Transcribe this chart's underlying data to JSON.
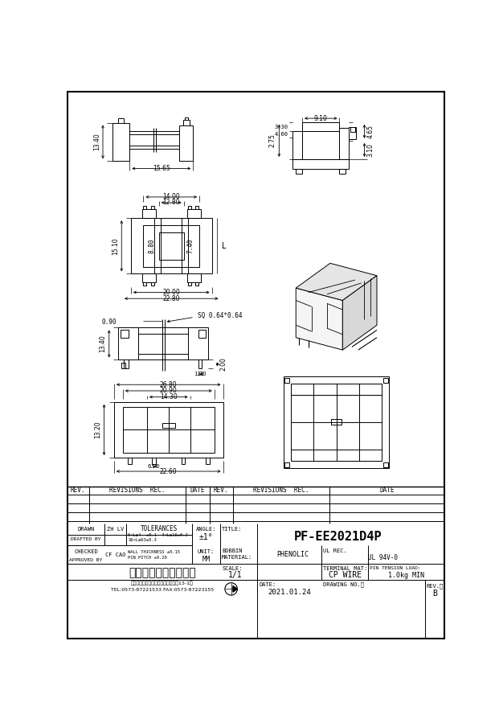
{
  "title": "PF-EE2021D4P",
  "company_name": "海宁捧晖电子有限公司",
  "company_addr": "地址：浙江省海宁市益宫镇园区四路13-1号",
  "company_tel": "TEL:0573-87221533 FAX:0573-87223155",
  "zh_lv": "ZH LV",
  "cf_cao": "CF CAO",
  "tol_line1": "0<L≤4  ±0.1  4<L≤16±0.2",
  "tol_line2": "16<L≤63±0.3",
  "tol_line3": "WALL THICKNESS ±0.15",
  "tol_line4": "PIN PITCH ±0.20",
  "angle_val": "±1°",
  "material_val": "PHENOLIC",
  "ul_rec_val": "UL 94V-0",
  "terminal_val": "CP WIRE",
  "pin_tension_val": "1.0kg MIN",
  "date_val": "2021.01.24",
  "rev_val": "B"
}
